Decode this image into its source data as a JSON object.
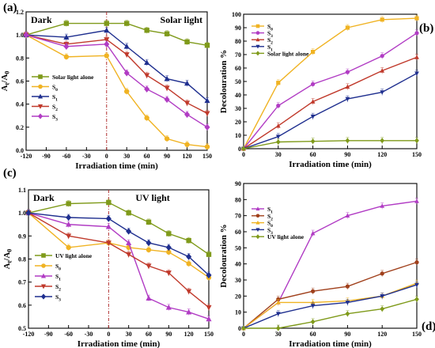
{
  "chart_data": [
    {
      "panel": "(a)",
      "type": "line",
      "xlabel": "Irradiation time (min)",
      "ylabel": "At/A0",
      "region_labels": [
        "Dark",
        "Solar light"
      ],
      "x": [
        -120,
        -60,
        0,
        30,
        60,
        90,
        120,
        150
      ],
      "xticks": [
        "-120",
        "-90",
        "-60",
        "-30",
        "0",
        "30",
        "60",
        "90",
        "120",
        "150"
      ],
      "xlim": [
        -120,
        150
      ],
      "ylim": [
        0.0,
        1.2
      ],
      "yticks": [
        "0.0",
        "0.2",
        "0.4",
        "0.6",
        "0.8",
        "1.0",
        "1.2"
      ],
      "legend_position": "left",
      "series": [
        {
          "name": "Solar light alone",
          "color": "#7f9a1a",
          "marker": "square",
          "values": [
            1.0,
            1.1,
            1.1,
            1.1,
            1.04,
            1.01,
            0.94,
            0.91
          ]
        },
        {
          "name": "S0",
          "color": "#f0b323",
          "marker": "circle",
          "values": [
            1.0,
            0.81,
            0.82,
            0.51,
            0.28,
            0.1,
            0.05,
            0.03
          ]
        },
        {
          "name": "S1",
          "color": "#1f2f8f",
          "marker": "triangle-up",
          "values": [
            1.0,
            0.98,
            1.04,
            0.9,
            0.76,
            0.62,
            0.58,
            0.43
          ]
        },
        {
          "name": "S2",
          "color": "#c0392b",
          "marker": "triangle-down",
          "values": [
            1.0,
            0.92,
            0.96,
            0.83,
            0.65,
            0.54,
            0.41,
            0.32
          ]
        },
        {
          "name": "S3",
          "color": "#b13cc4",
          "marker": "diamond",
          "values": [
            1.0,
            0.9,
            0.92,
            0.67,
            0.53,
            0.44,
            0.31,
            0.2
          ]
        }
      ]
    },
    {
      "panel": "(b)",
      "type": "line",
      "xlabel": "Irradiation time (min)",
      "ylabel": "Decolouration %",
      "x": [
        0,
        30,
        60,
        90,
        120,
        150
      ],
      "xticks": [
        "0",
        "30",
        "60",
        "90",
        "120",
        "150"
      ],
      "xlim": [
        0,
        150
      ],
      "ylim": [
        0,
        100
      ],
      "yticks": [
        "0",
        "10",
        "20",
        "30",
        "40",
        "50",
        "60",
        "70",
        "80",
        "90",
        "100"
      ],
      "legend_position": "top-left",
      "series": [
        {
          "name": "S0",
          "color": "#f0b323",
          "marker": "square",
          "values": [
            0,
            49,
            72,
            90,
            96,
            97
          ]
        },
        {
          "name": "S3",
          "color": "#b13cc4",
          "marker": "circle",
          "values": [
            0,
            32,
            48,
            57,
            69,
            86
          ]
        },
        {
          "name": "S2",
          "color": "#c0392b",
          "marker": "triangle-up",
          "values": [
            0,
            17,
            35,
            46,
            58,
            68
          ]
        },
        {
          "name": "S1",
          "color": "#1f2f8f",
          "marker": "triangle-down",
          "values": [
            0,
            9,
            24,
            37,
            42,
            56
          ]
        },
        {
          "name": "Solar light alone",
          "color": "#7f9a1a",
          "marker": "diamond",
          "values": [
            0,
            5,
            5.5,
            6,
            6,
            6
          ]
        }
      ]
    },
    {
      "panel": "(c)",
      "type": "line",
      "xlabel": "Irradiation time (min)",
      "ylabel": "At/A0",
      "region_labels": [
        "Dark",
        "UV light"
      ],
      "x": [
        -120,
        -60,
        0,
        30,
        60,
        90,
        120,
        150
      ],
      "xticks": [
        "-120",
        "-90",
        "-60",
        "-30",
        "0",
        "30",
        "60",
        "90",
        "120",
        "150"
      ],
      "xlim": [
        -120,
        150
      ],
      "ylim": [
        0.5,
        1.1
      ],
      "yticks": [
        "0.5",
        "0.6",
        "0.7",
        "0.8",
        "0.9",
        "1.0",
        "1.1"
      ],
      "legend_position": "left",
      "series": [
        {
          "name": "UV light alone",
          "color": "#7f9a1a",
          "marker": "square",
          "values": [
            1.0,
            1.04,
            1.045,
            1.0,
            0.96,
            0.91,
            0.88,
            0.82
          ]
        },
        {
          "name": "S0",
          "color": "#f0b323",
          "marker": "circle",
          "values": [
            1.0,
            0.85,
            0.87,
            0.85,
            0.84,
            0.83,
            0.78,
            0.72
          ]
        },
        {
          "name": "S1",
          "color": "#b13cc4",
          "marker": "triangle-up",
          "values": [
            1.0,
            0.95,
            0.94,
            0.87,
            0.63,
            0.59,
            0.57,
            0.54
          ]
        },
        {
          "name": "S2",
          "color": "#c0392b",
          "marker": "triangle-down",
          "values": [
            1.0,
            0.9,
            0.87,
            0.82,
            0.77,
            0.74,
            0.66,
            0.59
          ]
        },
        {
          "name": "S3",
          "color": "#1f2f8f",
          "marker": "diamond",
          "values": [
            1.0,
            0.98,
            0.975,
            0.92,
            0.87,
            0.85,
            0.81,
            0.73
          ]
        }
      ]
    },
    {
      "panel": "(d)",
      "type": "line",
      "xlabel": "Irradiation time (min)",
      "ylabel": "Decolouration %",
      "x": [
        0,
        30,
        60,
        90,
        120,
        150
      ],
      "xticks": [
        "0",
        "30",
        "60",
        "90",
        "120",
        "150"
      ],
      "xlim": [
        0,
        150
      ],
      "ylim": [
        0,
        90
      ],
      "yticks": [
        "0",
        "10",
        "20",
        "30",
        "40",
        "50",
        "60",
        "70",
        "80",
        "90"
      ],
      "legend_position": "top-left",
      "series": [
        {
          "name": "S1",
          "color": "#b13cc4",
          "marker": "triangle-up",
          "values": [
            0,
            16,
            59,
            70,
            76,
            79
          ]
        },
        {
          "name": "S2",
          "color": "#a0401c",
          "marker": "circle",
          "values": [
            0,
            18,
            23,
            26,
            34,
            41
          ]
        },
        {
          "name": "S0",
          "color": "#f0b323",
          "marker": "triangle-up",
          "values": [
            0,
            16,
            16,
            17,
            20,
            28
          ]
        },
        {
          "name": "S3",
          "color": "#1f2f8f",
          "marker": "triangle-down",
          "values": [
            0,
            9,
            14,
            16,
            20,
            27
          ]
        },
        {
          "name": "UV light alone",
          "color": "#7f9a1a",
          "marker": "diamond",
          "values": [
            0,
            0,
            4,
            9,
            12,
            18
          ]
        }
      ]
    }
  ]
}
